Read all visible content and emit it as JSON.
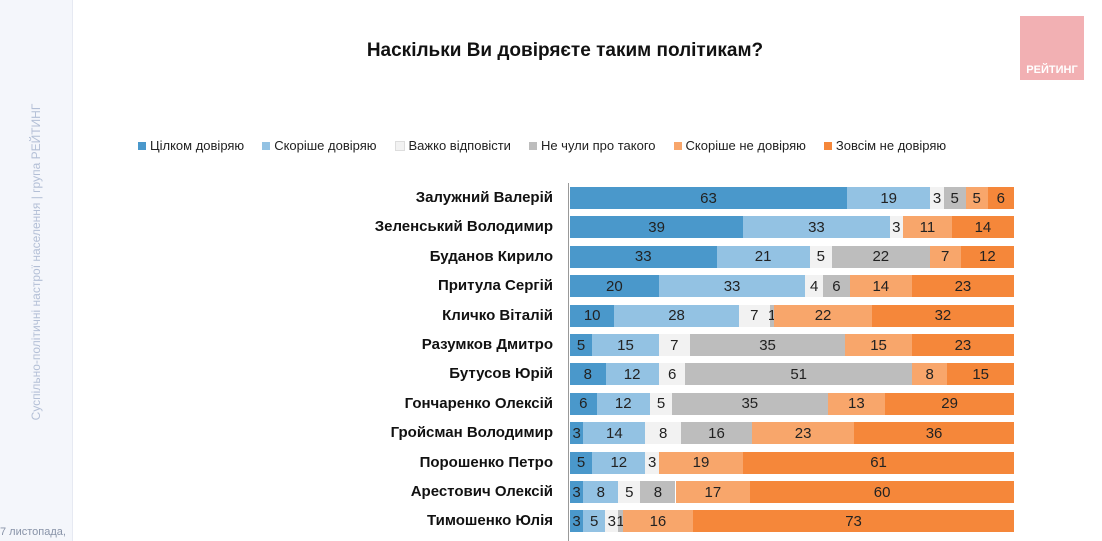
{
  "sidebar": {
    "text": "Суспільно-політичні настрої населення | група РЕЙТИНГ",
    "date": "7 листопада,"
  },
  "logo": {
    "text": "РЕЙТИНГ"
  },
  "chart_data": {
    "type": "bar",
    "orientation": "horizontal-stacked-100",
    "title": "Наскільки Ви довіряєте таким політикам?",
    "legend_position": "top",
    "series": [
      {
        "name": "Цілком довіряю",
        "color": "#4a98cb"
      },
      {
        "name": "Скоріше довіряю",
        "color": "#93c2e3"
      },
      {
        "name": "Важко відповісти",
        "color": "#f2f2f2"
      },
      {
        "name": "Не чули про такого",
        "color": "#bdbdbd"
      },
      {
        "name": "Скоріше не довіряю",
        "color": "#f8a66b"
      },
      {
        "name": "Зовсім не довіряю",
        "color": "#f5873a"
      }
    ],
    "categories": [
      "Залужний Валерій",
      "Зеленський Володимир",
      "Буданов Кирило",
      "Притула Сергій",
      "Кличко Віталій",
      "Разумков Дмитро",
      "Бутусов Юрій",
      "Гончаренко Олексій",
      "Гройсман Володимир",
      "Порошенко Петро",
      "Арестович Олексій",
      "Тимошенко Юлія"
    ],
    "values": [
      [
        63,
        19,
        3,
        5,
        5,
        6
      ],
      [
        39,
        33,
        3,
        0,
        11,
        14
      ],
      [
        33,
        21,
        5,
        22,
        7,
        12
      ],
      [
        20,
        33,
        4,
        6,
        14,
        23
      ],
      [
        10,
        28,
        7,
        1,
        22,
        32
      ],
      [
        5,
        15,
        7,
        35,
        15,
        23
      ],
      [
        8,
        12,
        6,
        51,
        8,
        15
      ],
      [
        6,
        12,
        5,
        35,
        13,
        29
      ],
      [
        3,
        14,
        8,
        16,
        23,
        36
      ],
      [
        5,
        12,
        3,
        0,
        19,
        61
      ],
      [
        3,
        8,
        5,
        8,
        17,
        60
      ],
      [
        3,
        5,
        3,
        1,
        16,
        73
      ]
    ],
    "xlim": [
      0,
      100
    ]
  }
}
